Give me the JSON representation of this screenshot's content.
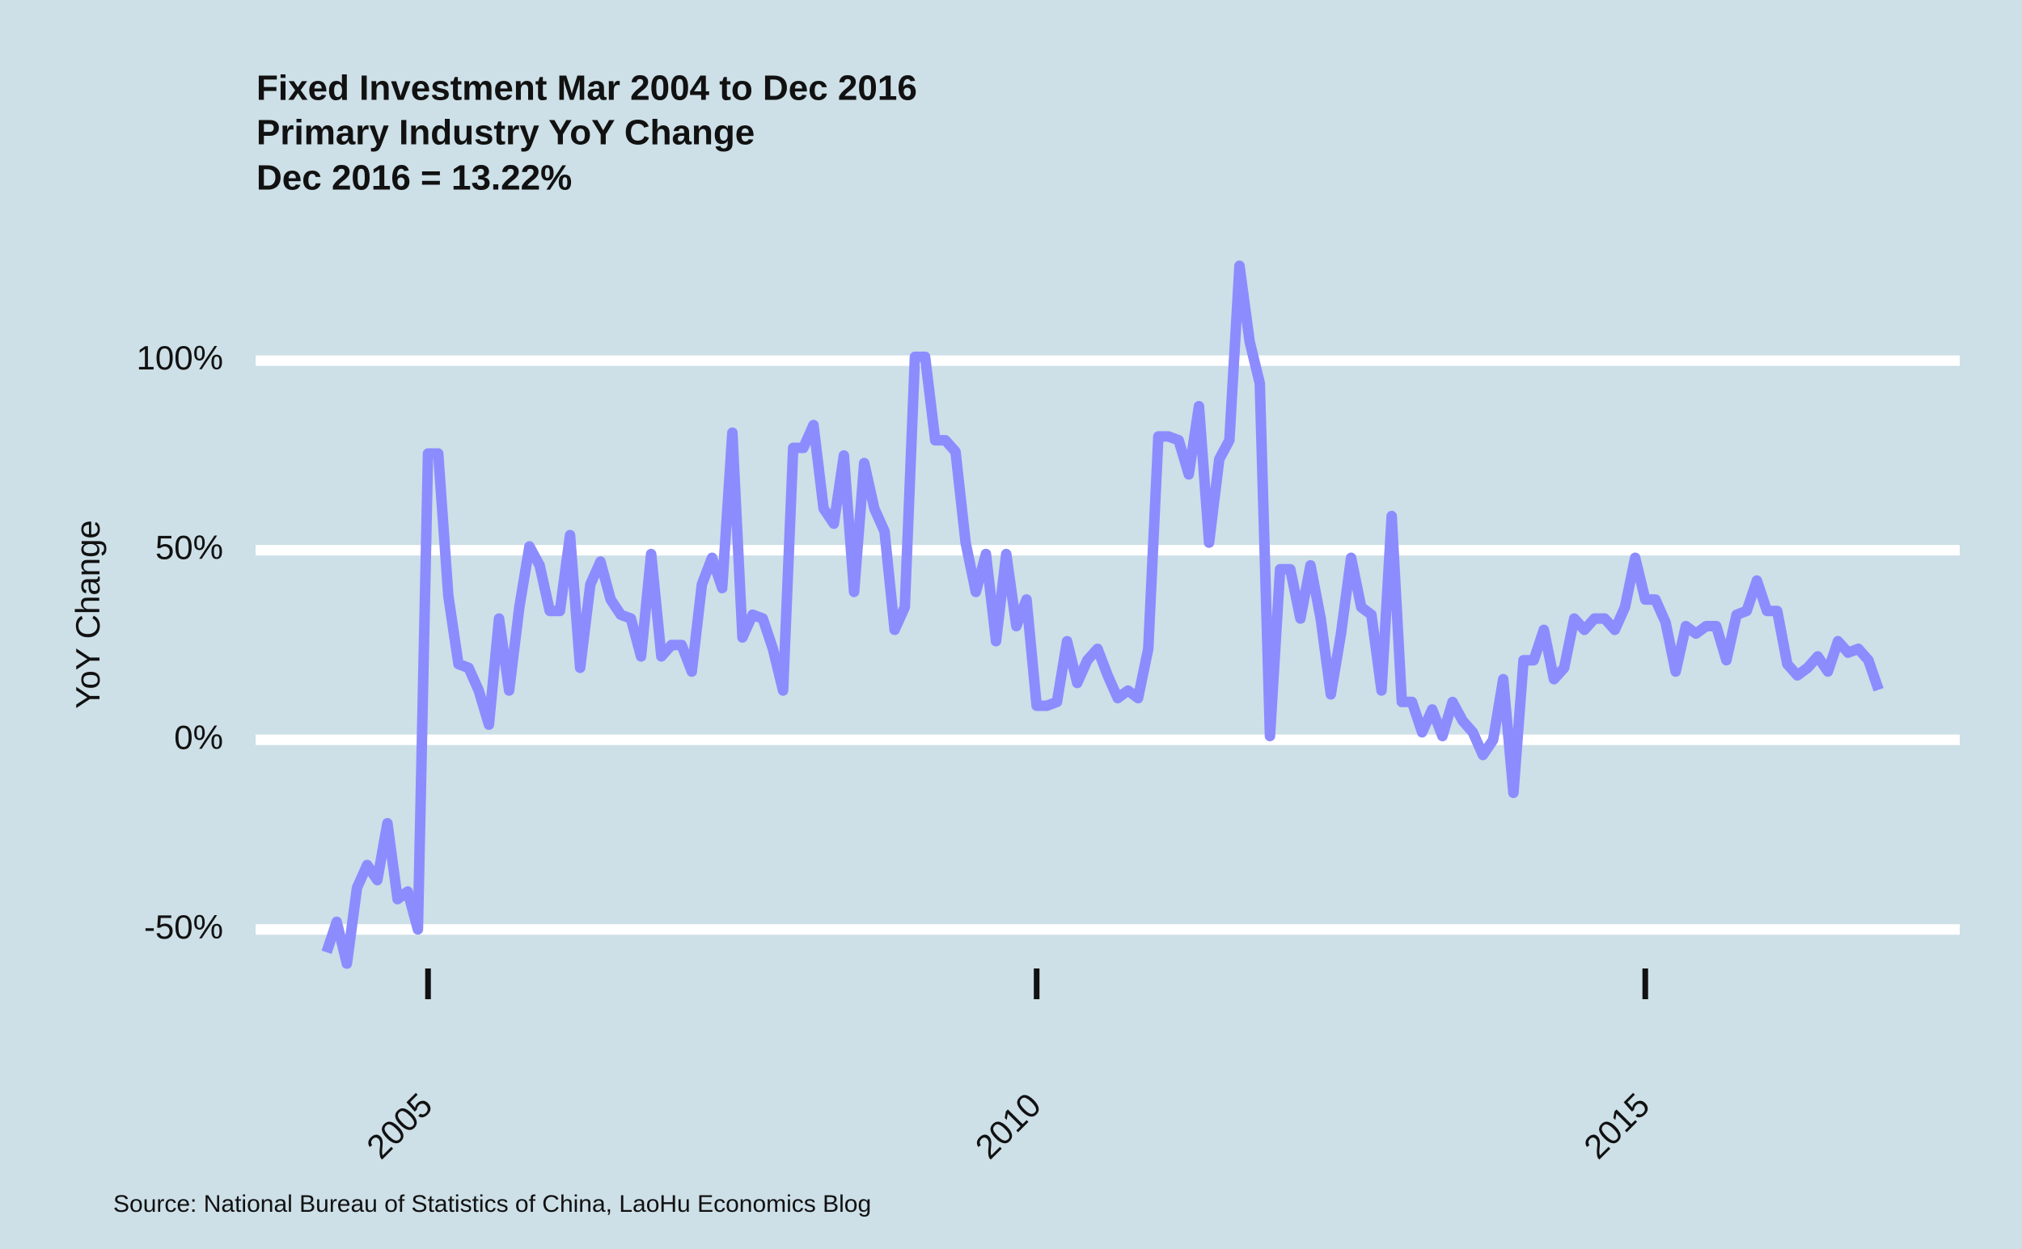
{
  "chart_data": {
    "type": "line",
    "title_lines": [
      "Fixed Investment Mar 2004 to Dec 2016",
      "Primary Industry YoY Change",
      "Dec 2016 = 13.22%"
    ],
    "y_label": "YoY Change",
    "source": "Source: National Bureau of Statistics of China, LaoHu Economics Blog",
    "color": "#8c8cff",
    "grid": true,
    "ylim": [
      -62,
      132
    ],
    "yticks": [
      {
        "value": -50,
        "label": "-50%"
      },
      {
        "value": 0,
        "label": "0%"
      },
      {
        "value": 50,
        "label": "50%"
      },
      {
        "value": 100,
        "label": "100%"
      }
    ],
    "xlim": [
      "2003-08",
      "2017-08"
    ],
    "xticks": [
      {
        "value": "2005-01",
        "label": "2005"
      },
      {
        "value": "2010-01",
        "label": "2010"
      },
      {
        "value": "2015-01",
        "label": "2015"
      }
    ],
    "x": [
      "2004-03",
      "2004-04",
      "2004-05",
      "2004-06",
      "2004-07",
      "2004-08",
      "2004-09",
      "2004-10",
      "2004-11",
      "2004-12",
      "2005-01",
      "2005-02",
      "2005-03",
      "2005-04",
      "2005-05",
      "2005-06",
      "2005-07",
      "2005-08",
      "2005-09",
      "2005-10",
      "2005-11",
      "2005-12",
      "2006-01",
      "2006-02",
      "2006-03",
      "2006-04",
      "2006-05",
      "2006-06",
      "2006-07",
      "2006-08",
      "2006-09",
      "2006-10",
      "2006-11",
      "2006-12",
      "2007-01",
      "2007-02",
      "2007-03",
      "2007-04",
      "2007-05",
      "2007-06",
      "2007-07",
      "2007-08",
      "2007-09",
      "2007-10",
      "2007-11",
      "2007-12",
      "2008-01",
      "2008-02",
      "2008-03",
      "2008-04",
      "2008-05",
      "2008-06",
      "2008-07",
      "2008-08",
      "2008-09",
      "2008-10",
      "2008-11",
      "2008-12",
      "2009-01",
      "2009-02",
      "2009-03",
      "2009-04",
      "2009-05",
      "2009-06",
      "2009-07",
      "2009-08",
      "2009-09",
      "2009-10",
      "2009-11",
      "2009-12",
      "2010-01",
      "2010-02",
      "2010-03",
      "2010-04",
      "2010-05",
      "2010-06",
      "2010-07",
      "2010-08",
      "2010-09",
      "2010-10",
      "2010-11",
      "2010-12",
      "2011-01",
      "2011-02",
      "2011-03",
      "2011-04",
      "2011-05",
      "2011-06",
      "2011-07",
      "2011-08",
      "2011-09",
      "2011-10",
      "2011-11",
      "2011-12",
      "2012-01",
      "2012-02",
      "2012-03",
      "2012-04",
      "2012-05",
      "2012-06",
      "2012-07",
      "2012-08",
      "2012-09",
      "2012-10",
      "2012-11",
      "2012-12",
      "2013-01",
      "2013-02",
      "2013-03",
      "2013-04",
      "2013-05",
      "2013-06",
      "2013-07",
      "2013-08",
      "2013-09",
      "2013-10",
      "2013-11",
      "2013-12",
      "2014-01",
      "2014-02",
      "2014-03",
      "2014-04",
      "2014-05",
      "2014-06",
      "2014-07",
      "2014-08",
      "2014-09",
      "2014-10",
      "2014-11",
      "2014-12",
      "2015-01",
      "2015-02",
      "2015-03",
      "2015-04",
      "2015-05",
      "2015-06",
      "2015-07",
      "2015-08",
      "2015-09",
      "2015-10",
      "2015-11",
      "2015-12",
      "2016-01",
      "2016-02",
      "2016-03",
      "2016-04",
      "2016-05",
      "2016-06",
      "2016-07",
      "2016-08",
      "2016-09",
      "2016-10",
      "2016-11",
      "2016-12"
    ],
    "values": [
      -56,
      -48,
      -59,
      -39,
      -33,
      -37,
      -22,
      -42,
      -40,
      -50,
      75.5,
      75.5,
      38,
      20,
      19,
      13,
      4,
      32,
      13,
      35,
      51,
      46,
      34,
      34,
      54,
      19,
      41,
      47,
      37,
      33,
      32,
      22,
      49,
      22,
      25,
      25,
      18,
      41,
      48,
      40,
      81,
      27,
      33,
      32,
      24,
      13,
      77,
      77,
      83,
      61,
      57,
      75,
      39,
      73,
      61,
      55,
      29,
      35,
      101,
      101,
      79,
      79,
      76,
      52,
      39,
      49,
      26,
      49,
      30,
      37,
      9,
      9,
      10,
      26,
      15,
      21,
      24,
      17,
      11,
      13,
      11,
      24,
      80,
      80,
      79,
      70,
      88,
      52,
      74,
      79,
      125,
      105,
      94,
      1,
      45,
      45,
      32,
      46,
      32,
      12,
      28,
      48,
      35,
      33,
      13,
      59,
      10,
      10,
      2,
      8,
      1,
      10,
      5,
      2,
      -4,
      0,
      16,
      -14,
      21,
      21,
      29,
      16,
      19,
      32,
      29,
      32,
      32,
      29,
      35,
      48,
      37,
      37,
      31,
      18,
      30,
      28,
      30,
      30,
      21,
      33,
      34,
      42,
      34,
      34,
      20,
      17,
      19,
      22,
      18,
      26,
      23,
      24,
      21,
      13.22
    ]
  }
}
